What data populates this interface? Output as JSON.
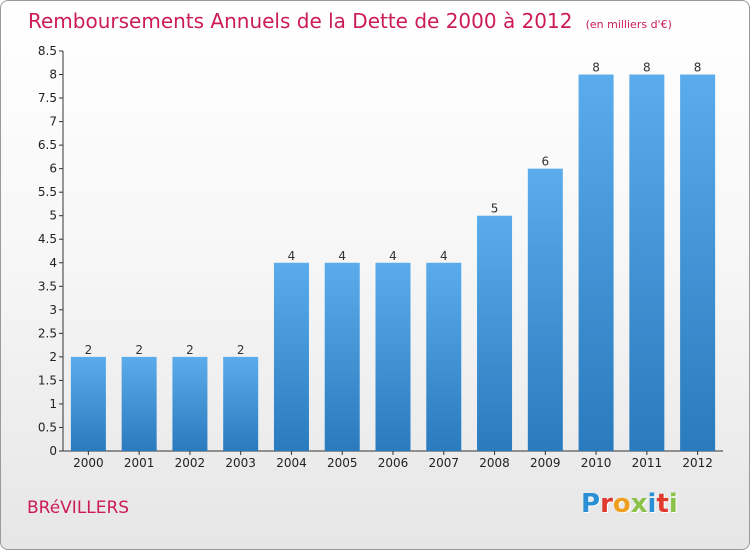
{
  "header": {
    "title": "Remboursements Annuels de la Dette de 2000 à 2012",
    "unit": "(en milliers d'€)"
  },
  "footer": {
    "commune": "BRéVILLERS",
    "logo": "Proxiti",
    "logo_colors": [
      "#2b8fd6",
      "#e03a2e",
      "#f0a020",
      "#8bc34a",
      "#2b8fd6",
      "#e03a2e",
      "#8bc34a"
    ]
  },
  "colors": {
    "bar_top": "#5aacec",
    "bar_bottom": "#2a7bbd",
    "title": "#cc1b56"
  },
  "chart_data": {
    "type": "bar",
    "title": "Remboursements Annuels de la Dette de 2000 à 2012",
    "subtitle": "(en milliers d'€)",
    "xlabel": "",
    "ylabel": "",
    "categories": [
      "2000",
      "2001",
      "2002",
      "2003",
      "2004",
      "2005",
      "2006",
      "2007",
      "2008",
      "2009",
      "2010",
      "2011",
      "2012"
    ],
    "values": [
      2,
      2,
      2,
      2,
      4,
      4,
      4,
      4,
      5,
      6,
      8,
      8,
      8
    ],
    "data_labels": [
      "2",
      "2",
      "2",
      "2",
      "4",
      "4",
      "4",
      "4",
      "5",
      "6",
      "8",
      "8",
      "8"
    ],
    "y_ticks": [
      "0",
      "0.5",
      "1",
      "1.5",
      "2",
      "2.5",
      "3",
      "3.5",
      "4",
      "4.5",
      "5",
      "5.5",
      "6",
      "6.5",
      "7",
      "7.5",
      "8",
      "8.5"
    ],
    "ylim": [
      0,
      8.5
    ],
    "grid": false,
    "legend": "none"
  }
}
